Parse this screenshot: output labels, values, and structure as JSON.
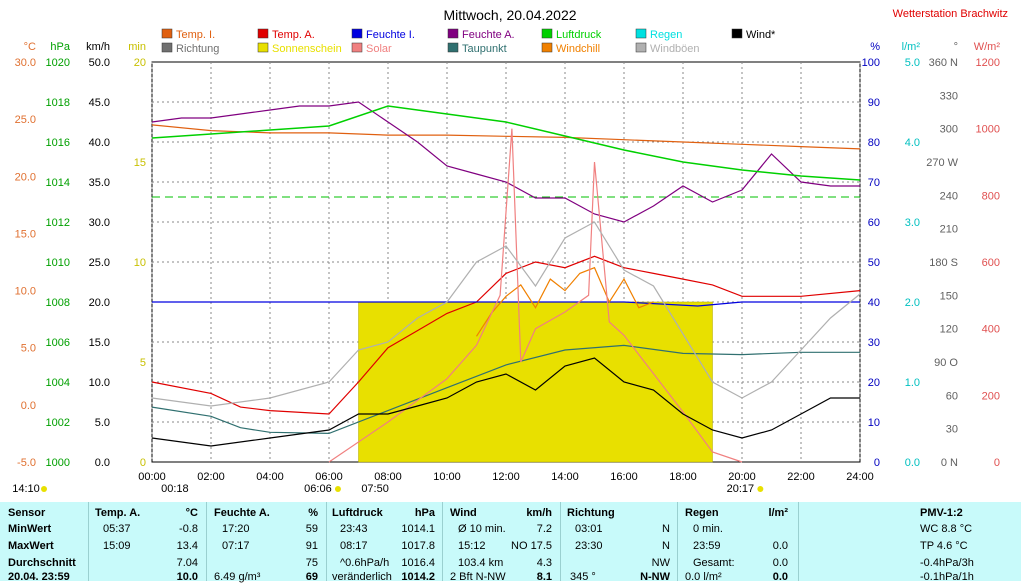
{
  "header": {
    "title": "Mittwoch, 20.04.2022",
    "station": "Wetterstation Brachwitz"
  },
  "legend": [
    {
      "label": "Temp. I.",
      "color": "#e06010"
    },
    {
      "label": "Temp. A.",
      "color": "#e00000"
    },
    {
      "label": "Feuchte I.",
      "color": "#0000e0"
    },
    {
      "label": "Feuchte A.",
      "color": "#800080"
    },
    {
      "label": "Luftdruck",
      "color": "#00d000"
    },
    {
      "label": "Regen",
      "color": "#00e0e0"
    },
    {
      "label": "Wind*",
      "color": "#000000"
    },
    {
      "label": "Richtung",
      "color": "#707070"
    },
    {
      "label": "Sonnenschein",
      "color": "#e8e000"
    },
    {
      "label": "Solar",
      "color": "#f08080"
    },
    {
      "label": "Taupunkt",
      "color": "#307070"
    },
    {
      "label": "Windchill",
      "color": "#f08000"
    },
    {
      "label": "Windböen",
      "color": "#b0b0b0"
    }
  ],
  "axes": {
    "temp": {
      "unit": "°C",
      "ticks": [
        "30.0",
        "25.0",
        "20.0",
        "15.0",
        "10.0",
        "5.0",
        "0.0",
        "-5.0"
      ],
      "color": "#e07030"
    },
    "pressure": {
      "unit": "hPa",
      "ticks": [
        "1020",
        "1018",
        "1016",
        "1014",
        "1012",
        "1010",
        "1008",
        "1006",
        "1004",
        "1002",
        "1000"
      ],
      "color": "#00a000"
    },
    "wind": {
      "unit": "km/h",
      "ticks": [
        "50.0",
        "45.0",
        "40.0",
        "35.0",
        "30.0",
        "25.0",
        "20.0",
        "15.0",
        "10.0",
        "5.0",
        "0.0"
      ],
      "color": "#000000"
    },
    "sun": {
      "unit": "min",
      "ticks": [
        "20",
        "15",
        "10",
        "5",
        "0"
      ],
      "color": "#c8c000"
    },
    "humidity": {
      "unit": "%",
      "ticks": [
        "100",
        "90",
        "80",
        "70",
        "60",
        "50",
        "40",
        "30",
        "20",
        "10",
        "0"
      ],
      "color": "#0000c0"
    },
    "rain": {
      "unit": "l/m²",
      "ticks": [
        "5.0",
        "4.0",
        "3.0",
        "2.0",
        "1.0",
        "0.0"
      ],
      "color": "#00c0c0"
    },
    "direction": {
      "unit": "°",
      "ticks": [
        "360 N",
        "330",
        "300",
        "270 W",
        "240",
        "210",
        "180 S",
        "150",
        "120",
        "90 O",
        "60",
        "30",
        "0 N"
      ],
      "color": "#606060"
    },
    "solar": {
      "unit": "W/m²",
      "ticks": [
        "1200",
        "1000",
        "800",
        "600",
        "400",
        "200",
        "0"
      ],
      "color": "#e05050"
    },
    "time": {
      "ticks": [
        "00:00",
        "02:00",
        "04:00",
        "06:00",
        "08:00",
        "10:00",
        "12:00",
        "14:00",
        "16:00",
        "18:00",
        "20:00",
        "22:00",
        "24:00"
      ]
    }
  },
  "sun_times": {
    "moonset_left": "14:10",
    "moonrise": "00:18",
    "sunrise": "06:06",
    "sun_mid": "07:50",
    "sunset": "20:17"
  },
  "chart_data": {
    "type": "line",
    "title": "Mittwoch, 20.04.2022",
    "x_unit": "hours",
    "xlim": [
      0,
      24
    ],
    "series": [
      {
        "name": "Temp. I.",
        "axis": "°C",
        "x": [
          0,
          2,
          4,
          6,
          8,
          10,
          12,
          14,
          16,
          18,
          20,
          22,
          24
        ],
        "values": [
          24.5,
          24.0,
          23.8,
          23.8,
          23.6,
          23.6,
          23.5,
          23.4,
          23.2,
          23.0,
          22.8,
          22.6,
          22.4
        ]
      },
      {
        "name": "Temp. A.",
        "axis": "°C",
        "x": [
          0,
          2,
          3,
          4,
          6,
          7,
          8,
          9,
          10,
          11,
          12,
          13,
          14,
          15,
          16,
          17,
          18,
          19,
          20,
          22,
          24
        ],
        "values": [
          2.0,
          1.0,
          -0.2,
          -0.5,
          -0.8,
          2.0,
          5.0,
          6.5,
          8.0,
          9.0,
          11.5,
          12.5,
          12.0,
          13.0,
          12.0,
          11.5,
          11.0,
          10.5,
          9.5,
          9.5,
          10.0
        ]
      },
      {
        "name": "Feuchte I.",
        "axis": "%",
        "x": [
          0,
          4,
          8,
          12,
          16,
          18.5,
          20,
          22,
          24
        ],
        "values": [
          40,
          40,
          40,
          40,
          40,
          39,
          40,
          40,
          40
        ]
      },
      {
        "name": "Feuchte A.",
        "axis": "%",
        "x": [
          0,
          1,
          2,
          3,
          4,
          5,
          6,
          7,
          8,
          9,
          10,
          11,
          12,
          13,
          14,
          15,
          16,
          17,
          18,
          19,
          20,
          21,
          22,
          23,
          24
        ],
        "values": [
          85,
          86,
          86,
          87,
          88,
          89,
          89,
          90,
          85,
          80,
          74,
          72,
          70,
          66,
          66,
          62,
          60,
          64,
          69,
          65,
          68,
          77,
          70,
          69,
          69
        ]
      },
      {
        "name": "Luftdruck",
        "axis": "hPa",
        "x": [
          0,
          2,
          4,
          6,
          8,
          10,
          12,
          14,
          16,
          18,
          20,
          22,
          24
        ],
        "values": [
          1016.2,
          1016.4,
          1016.6,
          1016.8,
          1017.8,
          1017.4,
          1017.0,
          1016.3,
          1015.6,
          1015.0,
          1014.6,
          1014.3,
          1014.1
        ]
      },
      {
        "name": "Taupunkt",
        "axis": "°C",
        "x": [
          0,
          2,
          3,
          4,
          6,
          8,
          10,
          12,
          14,
          16,
          18,
          20,
          22,
          24
        ],
        "values": [
          -0.2,
          -1.0,
          -2.0,
          -2.4,
          -2.5,
          -0.5,
          1.5,
          3.5,
          4.8,
          5.2,
          4.5,
          4.4,
          4.6,
          4.6
        ]
      },
      {
        "name": "Windchill",
        "axis": "°C",
        "x": [
          11,
          11.5,
          12,
          12.5,
          13,
          13.5,
          14,
          14.5,
          15,
          15.5,
          16,
          16.5,
          17
        ],
        "values": [
          6.0,
          8.0,
          9.5,
          10.5,
          8.5,
          11.0,
          10.0,
          11.5,
          12.0,
          9.0,
          11.0,
          8.5,
          9.0
        ]
      },
      {
        "name": "Solar",
        "axis": "W/m²",
        "x": [
          6,
          8,
          10,
          11,
          11.8,
          12.2,
          12.5,
          13,
          14,
          14.8,
          15,
          15.5,
          16,
          18,
          19,
          20
        ],
        "values": [
          0,
          120,
          250,
          350,
          500,
          1000,
          300,
          400,
          450,
          500,
          900,
          420,
          380,
          150,
          30,
          0
        ]
      },
      {
        "name": "Wind*",
        "axis": "km/h",
        "x": [
          0,
          2,
          4,
          6,
          7,
          8,
          9,
          10,
          11,
          12,
          13,
          14,
          15,
          16,
          17,
          18,
          19,
          20,
          21,
          22,
          23,
          24
        ],
        "values": [
          3,
          2,
          3,
          4,
          6,
          6,
          7,
          8,
          10,
          11,
          9,
          12,
          13,
          10,
          9,
          6,
          4,
          3,
          4,
          6,
          8,
          8
        ]
      },
      {
        "name": "Windböen",
        "axis": "km/h",
        "x": [
          0,
          2,
          4,
          6,
          7,
          8,
          9,
          10,
          11,
          12,
          13,
          14,
          15,
          16,
          17,
          18,
          19,
          20,
          21,
          22,
          23,
          24
        ],
        "values": [
          8,
          7,
          8,
          10,
          14,
          15,
          18,
          20,
          25,
          27,
          22,
          28,
          30,
          24,
          22,
          16,
          10,
          8,
          10,
          14,
          18,
          21
        ]
      },
      {
        "name": "Sonnenschein",
        "axis": "min",
        "x": [
          7,
          8,
          10,
          12,
          14,
          16,
          18,
          19
        ],
        "values": [
          8,
          8,
          8,
          8,
          8,
          8,
          8,
          8
        ]
      }
    ],
    "reference_line": {
      "axis": "hPa",
      "value": 1013.25
    }
  },
  "table": {
    "col1": {
      "header": "Sensor",
      "rows": [
        "MinWert",
        "MaxWert",
        "Durchschnitt",
        "20.04. 23:59"
      ]
    },
    "col2": {
      "header": "Temp. A.",
      "unit": "°C",
      "times": [
        "05:37",
        "15:09",
        "",
        ""
      ],
      "values": [
        "-0.8",
        "13.4",
        "7.04",
        "10.0"
      ]
    },
    "col3": {
      "header": "Feuchte A.",
      "unit": "%",
      "times": [
        "17:20",
        "07:17",
        "",
        "6.49 g/m³"
      ],
      "values": [
        "59",
        "91",
        "75",
        "69"
      ]
    },
    "col4": {
      "header": "Luftdruck",
      "unit": "hPa",
      "times": [
        "23:43",
        "08:17",
        "^0.6hPa/h",
        "veränderlich"
      ],
      "values": [
        "1014.1",
        "1017.8",
        "1016.4",
        "1014.2"
      ]
    },
    "col5": {
      "header": "Wind",
      "unit": "km/h",
      "times": [
        "Ø 10 min.",
        "15:12",
        "103.4 km",
        "2 Bft N-NW"
      ],
      "values": [
        "7.2",
        "NO 17.5",
        "4.3",
        "8.1"
      ]
    },
    "col6": {
      "header": "Richtung",
      "times": [
        "03:01",
        "23:30",
        "",
        ""
      ],
      "values": [
        "N",
        "N",
        "NW",
        "N-NW"
      ],
      "extra": "345 °"
    },
    "col7": {
      "header": "Regen",
      "unit": "l/m²",
      "times": [
        "0 min.",
        "23:59",
        "Gesamt:",
        "0.0 l/m²"
      ],
      "values": [
        "",
        "0.0",
        "0.0",
        "0.0"
      ]
    },
    "col8": {
      "header": "PMV-1:2",
      "rows": [
        "WC 8.8 °C",
        "TP 4.6 °C",
        "-0.4hPa/3h",
        "-0.1hPa/1h"
      ]
    }
  }
}
